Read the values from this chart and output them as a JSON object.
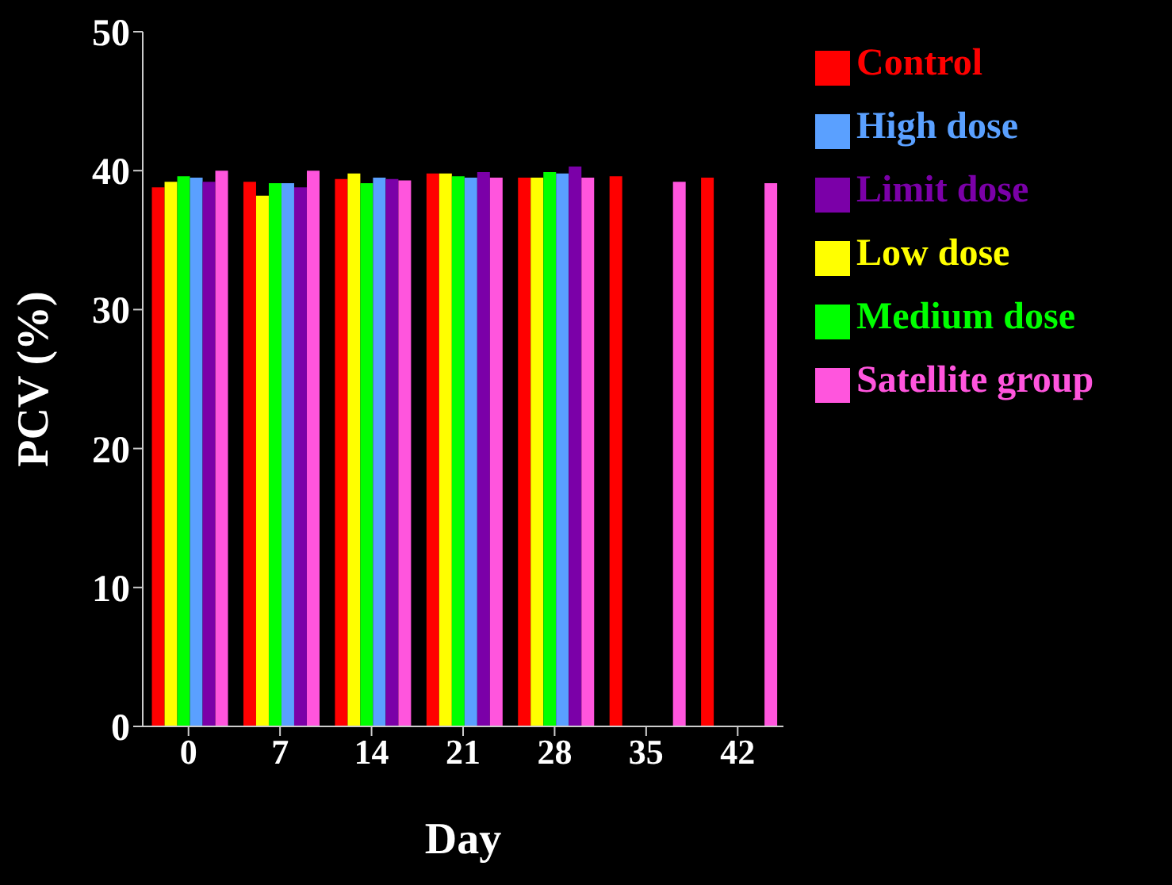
{
  "chart_data": {
    "type": "bar",
    "xlabel": "Day",
    "ylabel": "PCV (%)",
    "categories": [
      "0",
      "7",
      "14",
      "21",
      "28",
      "35",
      "42"
    ],
    "series": [
      {
        "name": "Control",
        "color": "#ff0000",
        "values": [
          38.8,
          39.2,
          39.4,
          39.8,
          39.5,
          39.6,
          39.5
        ]
      },
      {
        "name": "Low dose",
        "color": "#ffff00",
        "values": [
          39.2,
          38.2,
          39.8,
          39.8,
          39.5,
          null,
          null
        ]
      },
      {
        "name": "Medium dose",
        "color": "#00ff00",
        "values": [
          39.6,
          39.1,
          39.1,
          39.6,
          39.9,
          null,
          null
        ]
      },
      {
        "name": "High dose",
        "color": "#5aa0ff",
        "values": [
          39.5,
          39.1,
          39.5,
          39.5,
          39.8,
          null,
          null
        ]
      },
      {
        "name": "Limit dose",
        "color": "#7b00a8",
        "values": [
          39.2,
          38.8,
          39.4,
          39.9,
          40.3,
          null,
          null
        ]
      },
      {
        "name": "Satellite group",
        "color": "#ff55dd",
        "values": [
          40.0,
          40.0,
          39.3,
          39.5,
          39.5,
          39.2,
          39.1
        ]
      }
    ],
    "ylim": [
      0,
      50
    ],
    "yticks": [
      0,
      10,
      20,
      30,
      40,
      50
    ],
    "grid": false,
    "legend": "right"
  }
}
